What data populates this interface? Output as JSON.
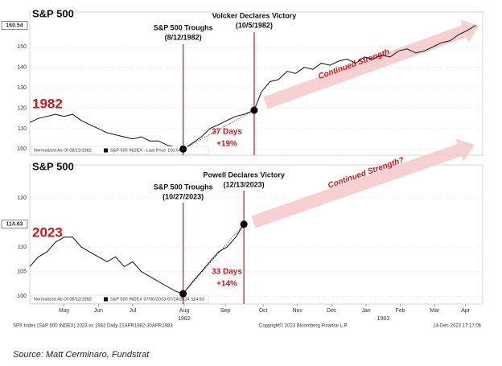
{
  "chart_data": [
    {
      "type": "line",
      "title": "S&P 500",
      "year_label": "1982",
      "legend_note": "Normalized As Of 08/12/1982",
      "x": [
        0,
        0.25,
        0.5,
        0.75,
        1,
        1.25,
        1.5,
        1.75,
        2,
        2.25,
        2.5,
        2.75,
        3,
        3.25,
        3.5,
        3.75,
        4,
        4.25,
        4.47,
        4.75,
        5,
        5.25,
        5.5,
        5.75,
        6,
        6.25,
        6.54,
        6.75,
        7,
        7.25,
        7.5,
        7.75,
        8,
        8.25,
        8.5,
        8.75,
        9,
        9.25,
        9.5,
        9.75,
        10,
        10.25,
        10.5,
        10.75,
        11,
        11.25,
        11.5,
        11.75,
        12,
        12.25,
        12.5,
        12.75,
        13
      ],
      "series": [
        {
          "name": "S&P 500 INDEX - Last Price",
          "color": "#111111",
          "values": [
            113,
            115,
            116,
            117,
            116,
            117,
            114,
            112,
            110,
            108,
            107,
            106,
            105,
            106,
            104,
            104,
            102,
            101,
            100,
            103,
            106,
            110,
            112,
            114,
            116,
            117,
            119,
            128,
            133,
            134,
            138,
            137,
            140,
            139,
            142,
            141,
            143,
            144,
            142,
            145,
            144,
            146,
            145,
            148,
            149,
            147,
            148,
            150,
            152,
            153,
            156,
            158,
            160.54
          ]
        }
      ],
      "xlim": [
        0,
        13.2
      ],
      "ylim": [
        97,
        167
      ],
      "yticks": [
        100,
        110,
        120,
        130,
        140,
        150
      ],
      "grid": true,
      "events": [
        {
          "label": "S&P 500 Troughs",
          "date": "(8/12/1982)",
          "x": 4.47
        },
        {
          "label": "Volcker Declares Victory",
          "date": "(10/5/1982)",
          "x": 6.54
        }
      ],
      "annotation": {
        "days": "37 Days",
        "change": "+19%"
      },
      "arrow_text": "Continued Strength"
    },
    {
      "type": "line",
      "title": "S&P 500",
      "year_label": "2023",
      "legend_note": "Normalized As Of 08/12/1982",
      "x": [
        0,
        0.25,
        0.5,
        0.75,
        1,
        1.25,
        1.5,
        1.75,
        2,
        2.25,
        2.5,
        2.75,
        3,
        3.25,
        3.5,
        3.75,
        4,
        4.25,
        4.47,
        4.75,
        5,
        5.25,
        5.5,
        5.75,
        6,
        6.24
      ],
      "series": [
        {
          "name": "S&P 500 INDEX 07/06/2023-07/14/2024",
          "color": "#111111",
          "values": [
            106,
            108,
            109,
            111,
            112,
            112,
            110,
            109,
            108,
            107,
            108,
            106,
            107,
            105,
            104,
            103,
            102,
            101,
            100.5,
            103,
            105,
            107,
            109,
            110,
            112,
            114.63
          ]
        }
      ],
      "xlim": [
        0,
        13.2
      ],
      "ylim": [
        98.4,
        126.7
      ],
      "yticks": [
        100,
        105,
        110,
        120
      ],
      "grid": true,
      "xticks": [
        {
          "value": 1,
          "label": "May"
        },
        {
          "value": 2,
          "label": "Jun"
        },
        {
          "value": 3,
          "label": "Jul"
        },
        {
          "value": 4.5,
          "label": "Aug"
        },
        {
          "value": 5.7,
          "label": "Sep"
        },
        {
          "value": 6.8,
          "label": "Oct"
        },
        {
          "value": 7.8,
          "label": "Nov"
        },
        {
          "value": 8.8,
          "label": "Dec"
        },
        {
          "value": 9.8,
          "label": "Jan"
        },
        {
          "value": 10.8,
          "label": "Feb"
        },
        {
          "value": 11.8,
          "label": "Mar"
        },
        {
          "value": 12.7,
          "label": "Apr"
        }
      ],
      "xticks_year": [
        {
          "value": 4.5,
          "label": "1982"
        },
        {
          "value": 10.3,
          "label": "1983"
        }
      ],
      "events": [
        {
          "label": "S&P 500 Troughs",
          "date": "(10/27/2023)",
          "x": 4.47
        },
        {
          "label": "Powell Declares Victory",
          "date": "(12/13/2023)",
          "x": 6.24
        }
      ],
      "annotation": {
        "days": "33 Days",
        "change": "+14%"
      },
      "arrow_text": "Continued Strength?"
    }
  ],
  "footer": {
    "left": "SPX Index (S&P 500 INDEX) 2023 vs 1982  Daily 21APR1982-30APR1983",
    "center": "Copyright© 2023 Bloomberg Finance L.P.",
    "right": "14-Dec-2023 17:17:06"
  },
  "source": "Source: Matt Cerminaro, Fundstrat"
}
